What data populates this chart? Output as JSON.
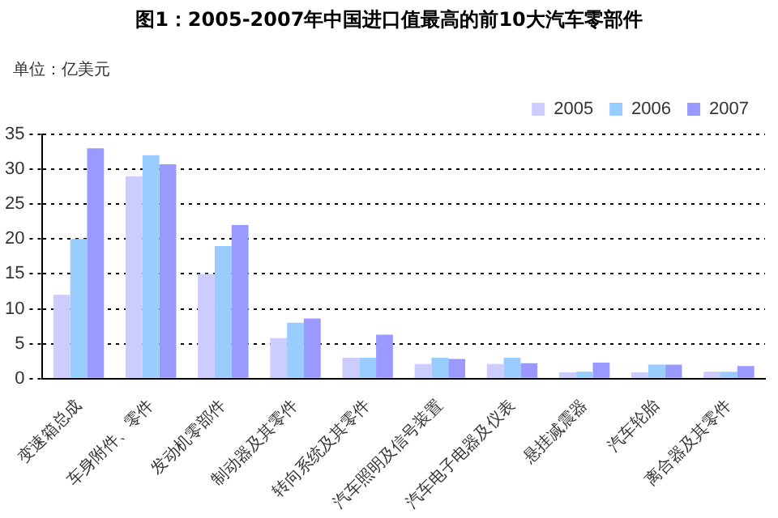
{
  "chart_data": {
    "type": "bar",
    "title": "图1：2005-2007年中国进口值最高的前10大汽车零部件",
    "ylabel": "单位：亿美元",
    "categories": [
      "变速箱总成",
      "车身附件、零件",
      "发动机零部件",
      "制动器及其零件",
      "转向系统及其零件",
      "汽车照明及信号装置",
      "汽车电子电器及仪表",
      "悬挂减震器",
      "汽车轮胎",
      "离合器及其零件"
    ],
    "series": [
      {
        "name": "2005",
        "color": "#ccccff",
        "values": [
          12,
          29,
          15,
          5.8,
          3,
          2.1,
          2.1,
          0.9,
          0.9,
          1
        ]
      },
      {
        "name": "2006",
        "color": "#99ccff",
        "values": [
          20,
          32,
          19,
          8,
          3,
          3,
          3,
          1,
          2,
          1
        ]
      },
      {
        "name": "2007",
        "color": "#9999ff",
        "values": [
          33,
          30.7,
          22,
          8.6,
          6.3,
          2.8,
          2.2,
          2.3,
          2,
          1.8
        ]
      }
    ],
    "ylim": [
      0,
      35
    ],
    "yticks": [
      0,
      5,
      10,
      15,
      20,
      25,
      30,
      35
    ],
    "grid": "y",
    "legend": "top right"
  }
}
